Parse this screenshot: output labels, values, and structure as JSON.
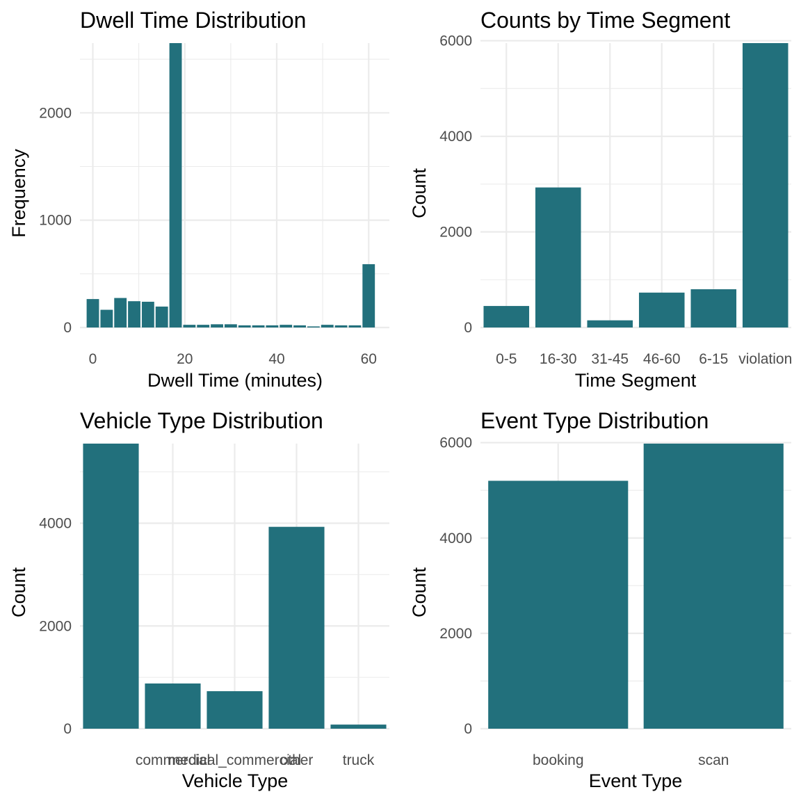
{
  "bar_color": "#22707c",
  "chart_data": [
    {
      "type": "bar",
      "title": "Dwell Time Distribution",
      "xlabel": "Dwell Time (minutes)",
      "ylabel": "Frequency",
      "x_ticks": [
        "0",
        "20",
        "40",
        "60"
      ],
      "y_ticks": [
        "0",
        "1000",
        "2000"
      ],
      "xlim": [
        -2.8,
        64.5
      ],
      "ylim": [
        0,
        2650
      ],
      "bin_width": 3,
      "bins": [
        {
          "x": 0,
          "count": 265
        },
        {
          "x": 3,
          "count": 165
        },
        {
          "x": 6,
          "count": 275
        },
        {
          "x": 9,
          "count": 245
        },
        {
          "x": 12,
          "count": 240
        },
        {
          "x": 15,
          "count": 195
        },
        {
          "x": 18,
          "count": 2650
        },
        {
          "x": 21,
          "count": 25
        },
        {
          "x": 24,
          "count": 25
        },
        {
          "x": 27,
          "count": 30
        },
        {
          "x": 30,
          "count": 30
        },
        {
          "x": 33,
          "count": 20
        },
        {
          "x": 36,
          "count": 20
        },
        {
          "x": 39,
          "count": 20
        },
        {
          "x": 42,
          "count": 25
        },
        {
          "x": 45,
          "count": 20
        },
        {
          "x": 48,
          "count": 10
        },
        {
          "x": 51,
          "count": 25
        },
        {
          "x": 54,
          "count": 20
        },
        {
          "x": 57,
          "count": 20
        },
        {
          "x": 60,
          "count": 590
        }
      ]
    },
    {
      "type": "bar",
      "title": "Counts by Time Segment",
      "xlabel": "Time Segment",
      "ylabel": "Count",
      "categories": [
        "0-5",
        "16-30",
        "31-45",
        "46-60",
        "6-15",
        "violation"
      ],
      "values": [
        450,
        2930,
        150,
        730,
        800,
        5950
      ],
      "y_ticks": [
        "0",
        "2000",
        "4000",
        "6000"
      ],
      "ylim": [
        0,
        5950
      ]
    },
    {
      "type": "bar",
      "title": "Vehicle Type Distribution",
      "xlabel": "Vehicle Type",
      "ylabel": "Count",
      "categories": [
        "",
        "commercial",
        "medical_commercial",
        "other",
        "truck"
      ],
      "values": [
        5550,
        880,
        730,
        3930,
        80
      ],
      "y_ticks": [
        "0",
        "2000",
        "4000"
      ],
      "ylim": [
        0,
        5550
      ]
    },
    {
      "type": "bar",
      "title": "Event Type Distribution",
      "xlabel": "Event Type",
      "ylabel": "Count",
      "categories": [
        "booking",
        "scan"
      ],
      "values": [
        5200,
        5980
      ],
      "y_ticks": [
        "0",
        "2000",
        "4000",
        "6000"
      ],
      "ylim": [
        0,
        5980
      ]
    }
  ]
}
